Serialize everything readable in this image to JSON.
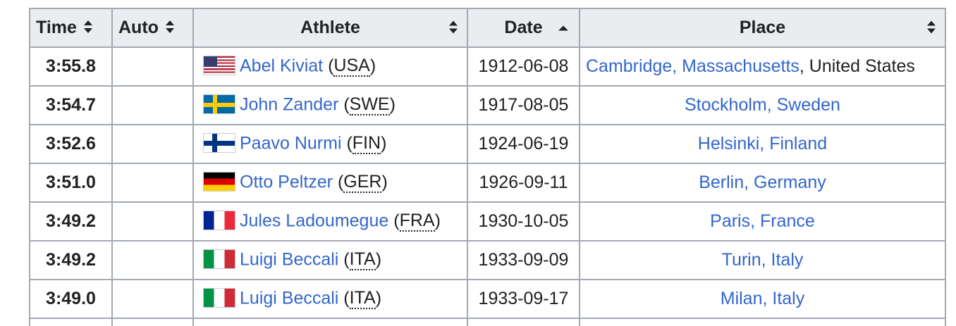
{
  "table": {
    "headers": {
      "time": "Time",
      "auto": "Auto",
      "athlete": "Athlete",
      "date": "Date",
      "place": "Place"
    },
    "sort_icons": {
      "unsorted": "sort-both-icon",
      "ascending": "sort-ascending-icon"
    },
    "rows": [
      {
        "time": "3:55.8",
        "auto": "",
        "flag": "flag-usa-icon",
        "athlete": "Abel Kiviat",
        "nation": "USA",
        "date": "1912-06-08",
        "place_link": "Cambridge, Massachusetts",
        "place_rest": ", United States"
      },
      {
        "time": "3:54.7",
        "auto": "",
        "flag": "flag-swe-icon",
        "athlete": "John Zander",
        "nation": "SWE",
        "date": "1917-08-05",
        "place_link": "Stockholm, Sweden",
        "place_rest": ""
      },
      {
        "time": "3:52.6",
        "auto": "",
        "flag": "flag-fin-icon",
        "athlete": "Paavo Nurmi",
        "nation": "FIN",
        "date": "1924-06-19",
        "place_link": "Helsinki, Finland",
        "place_rest": ""
      },
      {
        "time": "3:51.0",
        "auto": "",
        "flag": "flag-ger-icon",
        "athlete": "Otto Peltzer",
        "nation": "GER",
        "date": "1926-09-11",
        "place_link": "Berlin, Germany",
        "place_rest": ""
      },
      {
        "time": "3:49.2",
        "auto": "",
        "flag": "flag-fra-icon",
        "athlete": "Jules Ladoumegue",
        "nation": "FRA",
        "date": "1930-10-05",
        "place_link": "Paris, France",
        "place_rest": ""
      },
      {
        "time": "3:49.2",
        "auto": "",
        "flag": "flag-ita-icon",
        "athlete": "Luigi Beccali",
        "nation": "ITA",
        "date": "1933-09-09",
        "place_link": "Turin, Italy",
        "place_rest": ""
      },
      {
        "time": "3:49.0",
        "auto": "",
        "flag": "flag-ita-icon",
        "athlete": "Luigi Beccali",
        "nation": "ITA",
        "date": "1933-09-17",
        "place_link": "Milan, Italy",
        "place_rest": ""
      }
    ]
  }
}
